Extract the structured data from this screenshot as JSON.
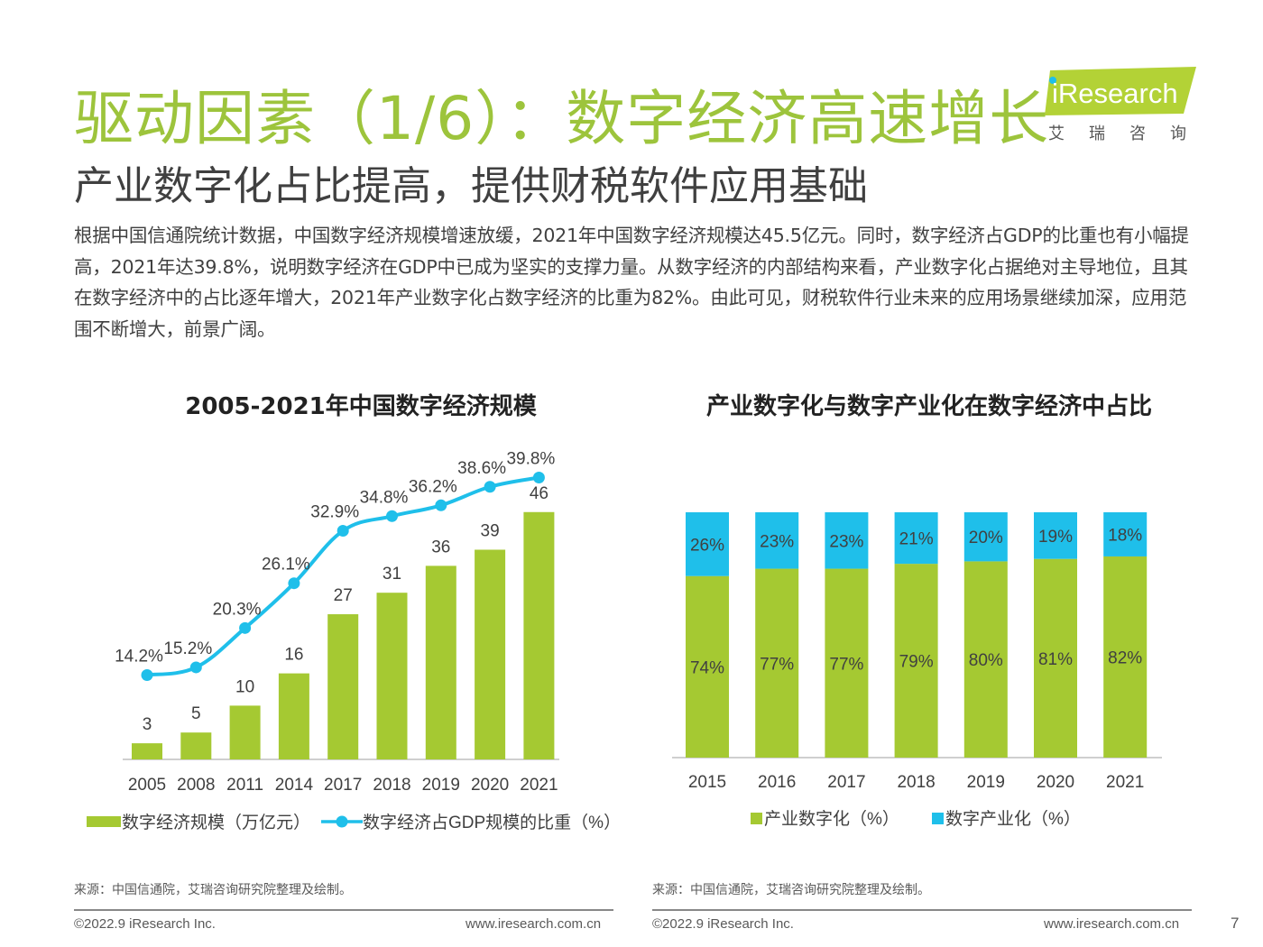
{
  "page": {
    "title": "驱动因素（1/6）：数字经济高速增长",
    "subtitle": "产业数字化占比提高，提供财税软件应用基础",
    "intro": "根据中国信通院统计数据，中国数字经济规模增速放缓，2021年中国数字经济规模达45.5亿元。同时，数字经济占GDP的比重也有小幅提高，2021年达39.8%，说明数字经济在GDP中已成为坚实的支撑力量。从数字经济的内部结构来看，产业数字化占据绝对主导地位，且其在数字经济中的占比逐年增大，2021年产业数字化占数字经济的比重为82%。由此可见，财税软件行业未来的应用场景继续加深，应用范围不断增大，前景广阔。",
    "page_number": "7"
  },
  "logo": {
    "brand_i": "i",
    "brand_rest": "Research",
    "tagline": "艾瑞咨询"
  },
  "footer": {
    "left_source": "来源：中国信通院，艾瑞咨询研究院整理及绘制。",
    "right_source": "来源：中国信通院，艾瑞咨询研究院整理及绘制。",
    "left_copyright": "©2022.9 iResearch Inc.",
    "left_url": "www.iresearch.com.cn",
    "right_copyright": "©2022.9 iResearch Inc.",
    "right_url": "www.iresearch.com.cn"
  },
  "colors": {
    "green": "#a5c932",
    "cyan": "#1fbfea",
    "title_green": "#9dc43c",
    "logo_green": "#b3d236"
  },
  "chart_data": [
    {
      "type": "bar",
      "title": "2005-2021年中国数字经济规模",
      "categories": [
        "2005",
        "2008",
        "2011",
        "2014",
        "2017",
        "2018",
        "2019",
        "2020",
        "2021"
      ],
      "series": [
        {
          "name": "数字经济规模（万亿元）",
          "type": "bar",
          "color": "#a5c932",
          "values": [
            3,
            5,
            10,
            16,
            27,
            31,
            36,
            39,
            46
          ]
        },
        {
          "name": "数字经济占GDP规模的比重（%）",
          "type": "line",
          "color": "#1fbfea",
          "values": [
            14.2,
            15.2,
            20.3,
            26.1,
            32.9,
            34.8,
            36.2,
            38.6,
            39.8
          ]
        }
      ],
      "legend": "bottom"
    },
    {
      "type": "bar",
      "stacked": true,
      "percent": true,
      "title": "产业数字化与数字产业化在数字经济中占比",
      "categories": [
        "2015",
        "2016",
        "2017",
        "2018",
        "2019",
        "2020",
        "2021"
      ],
      "series": [
        {
          "name": "产业数字化（%）",
          "color": "#a5c932",
          "values": [
            74,
            77,
            77,
            79,
            80,
            81,
            82
          ]
        },
        {
          "name": "数字产业化（%）",
          "color": "#1fbfea",
          "values": [
            26,
            23,
            23,
            21,
            20,
            19,
            18
          ]
        }
      ],
      "ylim": [
        0,
        100
      ],
      "legend": "bottom"
    }
  ]
}
